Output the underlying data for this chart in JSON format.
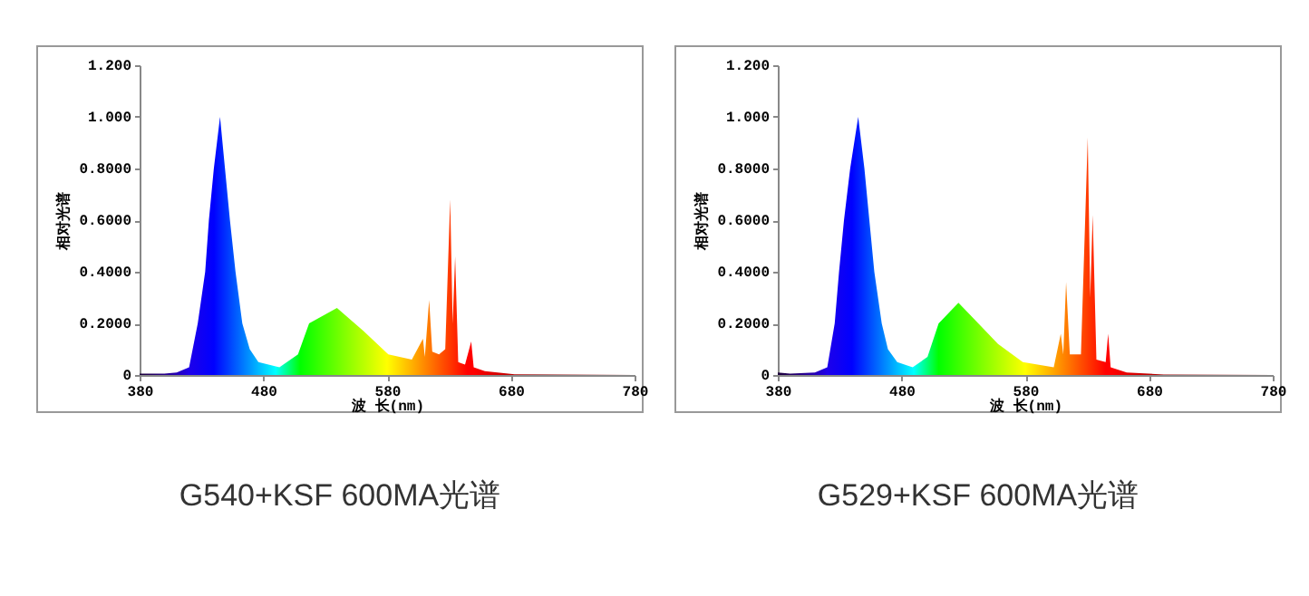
{
  "chart_data": [
    {
      "type": "area",
      "title": "G540+KSF 600MA光谱",
      "xlabel": "波 长(nm)",
      "ylabel": "相对光谱",
      "xlim": [
        380,
        780
      ],
      "xticks": [
        380,
        480,
        580,
        680,
        780
      ],
      "ylim": [
        0,
        1.2
      ],
      "yticks": [
        0,
        {
          "value": 0.2,
          "label": "0.2000"
        },
        {
          "value": 0.4,
          "label": "0.4000"
        },
        {
          "value": 0.6,
          "label": "0.6000"
        },
        {
          "value": 0.8,
          "label": "0.8000"
        },
        {
          "value": 1,
          "label": "1.000"
        },
        {
          "value": 1.2,
          "label": "1.200"
        }
      ],
      "x": [
        380,
        400,
        410,
        420,
        427,
        433,
        436,
        440,
        445,
        449,
        453,
        457.5,
        463,
        469,
        476,
        493,
        508,
        517,
        539.5,
        561,
        581,
        600,
        609,
        610.5,
        614,
        616.5,
        622,
        627,
        631,
        633,
        635,
        637.5,
        643,
        648,
        650,
        659,
        683,
        780
      ],
      "values": [
        0.005,
        0.005,
        0.01,
        0.03,
        0.2,
        0.4,
        0.6,
        0.8,
        1.0,
        0.8,
        0.6,
        0.4,
        0.2,
        0.1,
        0.05,
        0.03,
        0.08,
        0.2,
        0.26,
        0.17,
        0.08,
        0.06,
        0.14,
        0.07,
        0.29,
        0.09,
        0.08,
        0.1,
        0.68,
        0.2,
        0.46,
        0.05,
        0.04,
        0.13,
        0.03,
        0.015,
        0.003,
        0
      ]
    },
    {
      "type": "area",
      "title": "G529+KSF 600MA光谱",
      "xlabel": "波 长(nm)",
      "ylabel": "相对光谱",
      "xlim": [
        380,
        780
      ],
      "xticks": [
        380,
        480,
        580,
        680,
        780
      ],
      "ylim": [
        0,
        1.2
      ],
      "yticks": [
        0,
        {
          "value": 0.2,
          "label": "0.2000"
        },
        {
          "value": 0.4,
          "label": "0.4000"
        },
        {
          "value": 0.6,
          "label": "0.6000"
        },
        {
          "value": 0.8,
          "label": "0.8000"
        },
        {
          "value": 1,
          "label": "1.000"
        },
        {
          "value": 1.2,
          "label": "1.200"
        }
      ],
      "x": [
        380,
        390,
        410,
        420,
        426,
        429.5,
        433.5,
        438.5,
        445,
        450,
        454,
        458,
        464,
        469,
        476.5,
        489,
        501,
        510,
        512,
        526,
        538,
        558,
        578,
        603,
        608.7,
        610.7,
        613,
        616,
        625,
        630.5,
        632.5,
        634.5,
        637.5,
        645,
        647,
        649,
        662,
        692,
        780
      ],
      "values": [
        0.01,
        0.005,
        0.01,
        0.03,
        0.2,
        0.4,
        0.6,
        0.8,
        1.0,
        0.8,
        0.6,
        0.4,
        0.2,
        0.1,
        0.05,
        0.03,
        0.07,
        0.2,
        0.21,
        0.28,
        0.22,
        0.12,
        0.05,
        0.03,
        0.16,
        0.08,
        0.36,
        0.08,
        0.08,
        0.92,
        0.3,
        0.62,
        0.06,
        0.05,
        0.16,
        0.03,
        0.01,
        0.002,
        0
      ]
    }
  ]
}
